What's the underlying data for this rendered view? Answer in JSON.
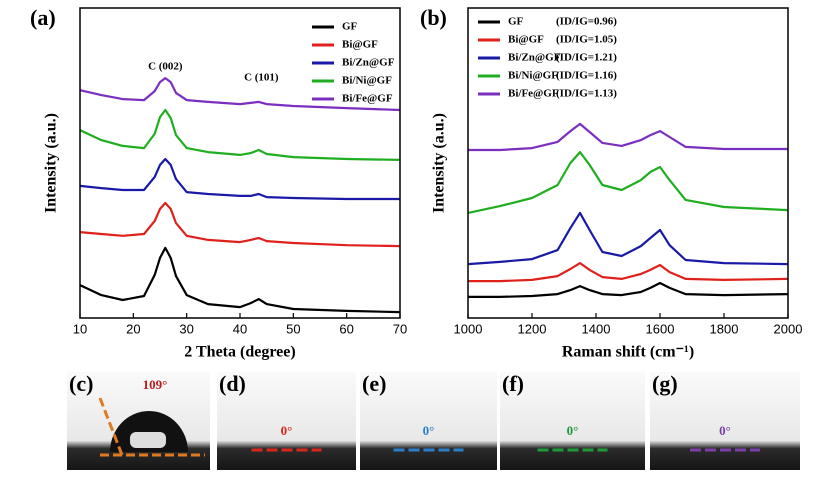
{
  "chart_data": [
    {
      "type": "line",
      "panel_label": "(a)",
      "x_label": "2 Theta (degree)",
      "y_label": "Intensity (a.u.)",
      "annotations": [
        "C (002)",
        "C (101)"
      ],
      "x": [
        10,
        14,
        18,
        22,
        24,
        25,
        26,
        27,
        28,
        30,
        34,
        40,
        42,
        43.5,
        45,
        50,
        60,
        70
      ],
      "xlim": [
        10,
        70
      ],
      "xticks": [
        10,
        20,
        30,
        40,
        50,
        60,
        70
      ],
      "ylim": [
        0,
        100
      ],
      "series": [
        {
          "name": "GF",
          "color": "#000000",
          "values": [
            10.6,
            7.4,
            5.8,
            7.1,
            13.9,
            19.4,
            22.6,
            19.4,
            13.5,
            7.4,
            4.5,
            3.5,
            4.8,
            6.1,
            4.5,
            2.9,
            2.3,
            1.9
          ]
        },
        {
          "name": "Bi@GF",
          "color": "#e0201b",
          "values": [
            27.7,
            27.1,
            26.5,
            27.1,
            31.3,
            35.2,
            37.1,
            35.2,
            30.6,
            26.5,
            25.2,
            24.5,
            25.2,
            25.8,
            24.8,
            24.2,
            23.5,
            23.2
          ]
        },
        {
          "name": "Bi/Zn@GF",
          "color": "#1a1aa6",
          "values": [
            42.6,
            41.9,
            41.3,
            41.3,
            45.5,
            49.4,
            51.3,
            49.4,
            44.8,
            40.6,
            40.0,
            39.4,
            39.4,
            40.0,
            39.0,
            38.7,
            38.4,
            38.4
          ]
        },
        {
          "name": "Bi/Ni@GF",
          "color": "#1fae1f",
          "values": [
            60.6,
            57.4,
            55.5,
            54.8,
            59.4,
            64.8,
            67.1,
            64.5,
            59.0,
            54.8,
            53.5,
            52.6,
            53.2,
            54.2,
            52.9,
            51.9,
            51.3,
            51.0
          ]
        },
        {
          "name": "Bi/Fe@GF",
          "color": "#7b2fbf",
          "values": [
            73.5,
            71.9,
            70.6,
            70.3,
            73.2,
            76.1,
            77.4,
            76.1,
            72.6,
            70.3,
            69.7,
            69.0,
            69.4,
            69.7,
            69.0,
            68.4,
            67.7,
            67.1
          ]
        }
      ]
    },
    {
      "type": "line",
      "panel_label": "(b)",
      "x_label": "Raman shift (cm⁻¹)",
      "y_label": "Intensity (a.u.)",
      "x": [
        1000,
        1100,
        1200,
        1280,
        1320,
        1350,
        1380,
        1420,
        1480,
        1540,
        1570,
        1600,
        1630,
        1680,
        1800,
        2000
      ],
      "xlim": [
        1000,
        2000
      ],
      "xticks": [
        1000,
        1200,
        1400,
        1600,
        1800,
        2000
      ],
      "ylim": [
        0,
        100
      ],
      "series": [
        {
          "name": "GF",
          "note": "(ID/IG=0.96)",
          "color": "#000000",
          "values": [
            6.8,
            6.8,
            7.1,
            7.7,
            9.0,
            10.3,
            9.0,
            7.7,
            7.4,
            8.4,
            9.7,
            11.3,
            9.7,
            7.7,
            7.4,
            7.7
          ]
        },
        {
          "name": "Bi@GF",
          "note": "(ID/IG=1.05)",
          "color": "#e0201b",
          "values": [
            11.9,
            11.9,
            12.3,
            13.5,
            15.8,
            17.7,
            15.5,
            13.2,
            12.6,
            14.2,
            15.5,
            17.1,
            14.8,
            12.6,
            12.3,
            12.6
          ]
        },
        {
          "name": "Bi/Zn@GF",
          "note": "(ID/IG=1.21)",
          "color": "#1a1aa6",
          "values": [
            17.4,
            18.1,
            19.0,
            21.9,
            29.0,
            33.9,
            28.4,
            21.3,
            20.0,
            23.2,
            25.8,
            28.4,
            23.5,
            18.7,
            17.7,
            17.4
          ]
        },
        {
          "name": "Bi/Ni@GF",
          "note": "(ID/IG=1.16)",
          "color": "#1fae1f",
          "values": [
            33.9,
            36.1,
            38.7,
            42.9,
            50.0,
            53.5,
            49.4,
            42.9,
            41.3,
            44.5,
            47.1,
            48.7,
            44.5,
            38.1,
            35.8,
            34.8
          ]
        },
        {
          "name": "Bi/Fe@GF",
          "note": "(ID/IG=1.13)",
          "color": "#7b2fbf",
          "values": [
            54.2,
            54.2,
            54.8,
            56.8,
            60.3,
            62.6,
            60.0,
            56.5,
            55.5,
            57.4,
            59.0,
            60.3,
            58.4,
            55.2,
            54.5,
            54.5
          ]
        }
      ]
    }
  ],
  "photos": [
    {
      "label": "(c)",
      "angle": "109°",
      "color": "#e07a20"
    },
    {
      "label": "(d)",
      "angle": "0°",
      "color": "#d9261c"
    },
    {
      "label": "(e)",
      "angle": "0°",
      "color": "#2a7fc9"
    },
    {
      "label": "(f)",
      "angle": "0°",
      "color": "#1f9a3a"
    },
    {
      "label": "(g)",
      "angle": "0°",
      "color": "#7a3fa8"
    }
  ]
}
